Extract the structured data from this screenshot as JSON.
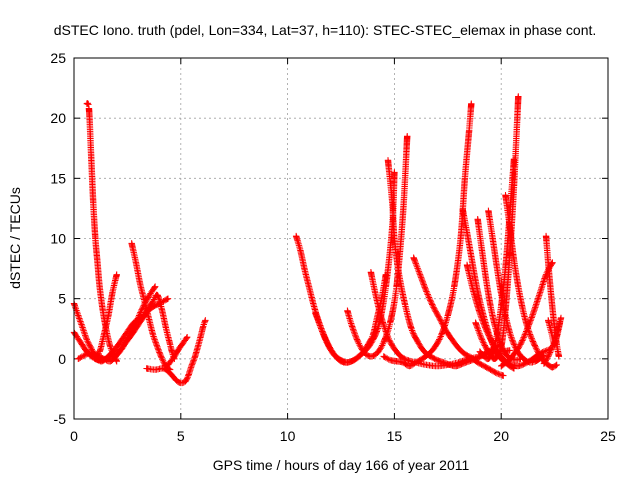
{
  "chart_data": {
    "type": "scatter",
    "title": "dSTEC Iono. truth (pdel, Lon=334, Lat=37, h=110): STEC-STEC_elemax in phase cont.",
    "xlabel": "GPS time / hours of day 166 of year 2011",
    "ylabel": "dSTEC  / TECUs",
    "xlim": [
      0,
      25
    ],
    "ylim": [
      -5,
      25
    ],
    "xticks": [
      "0",
      "5",
      "10",
      "15",
      "20",
      "25"
    ],
    "yticks": [
      "-5",
      "0",
      "5",
      "10",
      "15",
      "20",
      "25"
    ],
    "grid": true,
    "marker": "plus",
    "color": "#ff0000",
    "series": [
      {
        "segments": [
          {
            "x": [
              0.6,
              0.7,
              0.8,
              0.9,
              1.0,
              1.1,
              1.2,
              1.35,
              1.5,
              1.7,
              1.9,
              2.0
            ],
            "y": [
              21.2,
              20.8,
              17,
              13,
              10,
              8,
              6,
              4,
              2.5,
              1,
              0.2,
              -0.2
            ]
          },
          {
            "x": [
              0.0,
              0.2,
              0.4,
              0.6,
              0.8,
              1.0,
              1.2,
              1.4,
              1.6,
              1.8,
              2.0
            ],
            "y": [
              4.6,
              3.6,
              2.6,
              1.6,
              0.9,
              0.3,
              0.6,
              2,
              3.5,
              5.5,
              7
            ]
          },
          {
            "x": [
              0.0,
              0.3,
              0.6,
              0.9,
              1.2,
              1.5,
              1.8,
              2.1,
              2.4,
              2.7,
              3.0,
              3.3,
              3.5,
              3.7,
              3.9,
              4.1,
              4.3,
              4.5,
              4.6,
              4.7
            ],
            "y": [
              2.2,
              1.4,
              0.6,
              0.1,
              -0.1,
              0,
              0.3,
              0.6,
              1.3,
              2,
              2.8,
              3.6,
              4.2,
              4.8,
              5.3,
              4.2,
              2.6,
              1.2,
              0.5,
              0
            ]
          },
          {
            "x": [
              0.2,
              0.5,
              0.8,
              1.1,
              1.4,
              1.7,
              2.0,
              2.3,
              2.6,
              2.9,
              3.2,
              3.5,
              3.8
            ],
            "y": [
              0,
              0.3,
              0.5,
              0.3,
              0,
              -0.2,
              0.3,
              1,
              2,
              3,
              4.2,
              5.2,
              6
            ]
          },
          {
            "x": [
              2.7,
              2.9,
              3.1,
              3.3,
              3.5,
              3.7,
              3.9,
              4.1,
              4.3,
              4.5
            ],
            "y": [
              9.6,
              8,
              6.2,
              4.8,
              3.4,
              2,
              1,
              0.1,
              -0.6,
              -0.9
            ]
          },
          {
            "x": [
              1.0,
              1.3,
              1.6,
              2.0,
              2.4,
              2.8,
              3.2,
              3.6,
              4.0,
              4.4
            ],
            "y": [
              0,
              -0.2,
              0.2,
              1,
              2,
              3,
              3.5,
              4.2,
              4.6,
              5
            ]
          },
          {
            "x": [
              3.4,
              3.8,
              4.2,
              4.5,
              4.8,
              5.0,
              5.2,
              5.35,
              5.5,
              5.65,
              5.8,
              5.95,
              6.05,
              6.15
            ],
            "y": [
              -0.8,
              -0.9,
              -0.8,
              -1.2,
              -1.8,
              -2.0,
              -1.9,
              -1.4,
              -0.6,
              0.1,
              1,
              2,
              2.7,
              3.2
            ]
          },
          {
            "x": [
              4.4,
              4.7,
              4.9,
              5.1,
              5.3
            ],
            "y": [
              -0.5,
              0.2,
              0.8,
              1.3,
              1.8
            ]
          }
        ]
      },
      {
        "segments": [
          {
            "x": [
              10.4,
              10.6,
              10.8,
              11.0,
              11.2,
              11.4,
              11.6,
              11.8,
              12.0,
              12.2,
              12.4,
              12.6,
              12.8,
              13.0,
              13.2,
              13.4,
              13.6,
              13.8,
              14.0,
              14.2,
              14.4,
              14.6
            ],
            "y": [
              10.2,
              9,
              7.4,
              6,
              4.6,
              3.4,
              2.4,
              1.5,
              0.8,
              0.3,
              0,
              -0.2,
              -0.3,
              -0.2,
              0,
              0.3,
              0.7,
              1.3,
              2,
              3.5,
              5,
              7
            ]
          },
          {
            "x": [
              11.3,
              11.6,
              11.9,
              12.2,
              12.5,
              12.8,
              13.1,
              13.4,
              13.7,
              14.0,
              14.3,
              14.6,
              14.9,
              15.0
            ],
            "y": [
              3.8,
              2.4,
              1.2,
              0.3,
              -0.2,
              -0.3,
              -0.1,
              0.3,
              0.8,
              1.6,
              3,
              6,
              11,
              15.5
            ]
          },
          {
            "x": [
              12.8,
              13.0,
              13.3,
              13.6,
              13.9,
              14.2,
              14.5,
              14.8,
              15.1,
              15.4,
              15.6
            ],
            "y": [
              4,
              2.8,
              1.4,
              0.5,
              0.2,
              0.5,
              1.4,
              3,
              6,
              12,
              18.5
            ]
          },
          {
            "x": [
              13.9,
              14.1,
              14.3,
              14.5,
              14.7,
              14.9,
              15.1,
              15.3,
              15.6,
              16.0,
              16.5,
              17.0,
              17.5,
              18.0,
              18.5,
              19.0,
              19.5,
              20.0,
              20.4
            ],
            "y": [
              7.2,
              5.5,
              4,
              2.8,
              1.8,
              1.1,
              0.6,
              0.2,
              -0.1,
              -0.3,
              -0.5,
              -0.6,
              -0.5,
              -0.3,
              0,
              0.2,
              0.5,
              0.6,
              0.7
            ]
          },
          {
            "x": [
              14.5,
              14.8,
              15.1,
              15.4,
              15.7,
              16.0,
              16.3,
              16.6,
              16.9,
              17.2,
              17.5,
              17.8,
              18.1,
              18.3,
              18.5,
              18.6
            ],
            "y": [
              0.2,
              -0.1,
              -0.2,
              -0.3,
              -0.6,
              -0.3,
              0,
              0.4,
              1,
              2,
              3.6,
              6,
              10,
              15,
              19,
              21.2
            ]
          },
          {
            "x": [
              14.7,
              14.9,
              15.0,
              15.2,
              15.5,
              15.8,
              16.1,
              16.4,
              16.7,
              17.0,
              17.3,
              17.6,
              17.9,
              18.2,
              18.5,
              18.8,
              19.1,
              19.4,
              19.7,
              20.0
            ],
            "y": [
              16.5,
              13,
              10,
              7.2,
              4.5,
              2.5,
              1.4,
              0.6,
              0.2,
              -0.1,
              -0.3,
              -0.5,
              -0.6,
              -0.4,
              -0.2,
              0,
              0.3,
              0.6,
              0.9,
              1.2
            ]
          },
          {
            "x": [
              15.9,
              16.2,
              16.5,
              16.8,
              17.1,
              17.4,
              17.7,
              18.0,
              18.3,
              18.6,
              18.9,
              19.2,
              19.5,
              19.8,
              20.1
            ],
            "y": [
              8.4,
              7,
              5.6,
              4.4,
              3.4,
              2.4,
              1.6,
              0.9,
              0.4,
              0.1,
              -0.3,
              -0.6,
              -0.9,
              -1.2,
              -1.4
            ]
          },
          {
            "x": [
              18.2,
              18.4,
              18.6,
              18.8,
              19.0,
              19.2,
              19.4,
              19.6,
              19.8,
              20.0,
              20.2,
              20.4,
              20.6
            ],
            "y": [
              12.4,
              10.5,
              8.5,
              6.5,
              4.8,
              3.4,
              2.2,
              1.2,
              0.4,
              0,
              -0.3,
              -0.6,
              -0.8
            ]
          },
          {
            "x": [
              18.4,
              18.7,
              19.0,
              19.3,
              19.6,
              19.9,
              20.2,
              20.5,
              20.8,
              21.1,
              21.4,
              21.7,
              22.0,
              22.3
            ],
            "y": [
              7.8,
              5.6,
              3.8,
              2.4,
              1.3,
              0.4,
              -0.2,
              -0.5,
              -0.6,
              -0.4,
              -0.1,
              0.3,
              0.6,
              0.8
            ]
          },
          {
            "x": [
              18.9,
              19.1,
              19.3,
              19.5,
              19.7,
              19.9,
              20.1,
              20.3,
              20.5,
              20.7,
              20.9
            ],
            "y": [
              11.6,
              9,
              6.5,
              4.4,
              2.8,
              1.6,
              0.7,
              0.2,
              0,
              -0.1,
              0
            ]
          },
          {
            "x": [
              19.4,
              19.6,
              19.8,
              20.0,
              20.2,
              20.4,
              20.6,
              20.8,
              21.0,
              21.2,
              21.4,
              21.6,
              21.8,
              22.0
            ],
            "y": [
              12.3,
              10,
              7.6,
              5.4,
              3.6,
              2.2,
              1.2,
              0.5,
              0.1,
              -0.2,
              -0.3,
              -0.2,
              0,
              0.3
            ]
          },
          {
            "x": [
              19.0,
              19.2,
              19.4,
              19.6,
              19.8,
              20.0,
              20.2,
              20.4,
              20.6
            ],
            "y": [
              0.6,
              0.2,
              0,
              0.6,
              2,
              4.4,
              7.6,
              12,
              16.6
            ]
          },
          {
            "x": [
              18.8,
              19.1,
              19.4,
              19.7,
              20.0,
              20.2,
              20.4,
              20.6,
              20.8
            ],
            "y": [
              3,
              1.6,
              0.6,
              0,
              1,
              4,
              8.6,
              14.4,
              21.8
            ]
          },
          {
            "x": [
              20.2,
              20.4,
              20.6,
              20.8,
              21.0,
              21.2,
              21.4,
              21.6,
              21.8,
              22.0,
              22.2,
              22.4,
              22.6
            ],
            "y": [
              13.6,
              11,
              8.2,
              6,
              4.2,
              2.8,
              1.8,
              1,
              0.3,
              -0.2,
              -0.5,
              -0.7,
              -0.5
            ]
          },
          {
            "x": [
              20.0,
              20.3,
              20.6,
              20.9,
              21.2,
              21.5,
              21.8,
              22.1,
              22.4
            ],
            "y": [
              -0.6,
              -0.2,
              0.4,
              1.2,
              2.4,
              3.8,
              5.4,
              7,
              8
            ]
          },
          {
            "x": [
              22.1,
              22.2,
              22.3,
              22.4,
              22.5,
              22.6,
              22.7
            ],
            "y": [
              10.2,
              8,
              6,
              4.2,
              2.6,
              1.2,
              0.2
            ]
          },
          {
            "x": [
              22.2,
              22.35,
              22.5,
              22.65,
              22.8
            ],
            "y": [
              3.2,
              2.2,
              1.2,
              2.4,
              3.4
            ]
          },
          {
            "x": [
              22.0,
              22.2,
              22.4,
              22.6,
              22.75
            ],
            "y": [
              -0.4,
              0.2,
              1,
              1.8,
              3
            ]
          }
        ]
      }
    ]
  }
}
